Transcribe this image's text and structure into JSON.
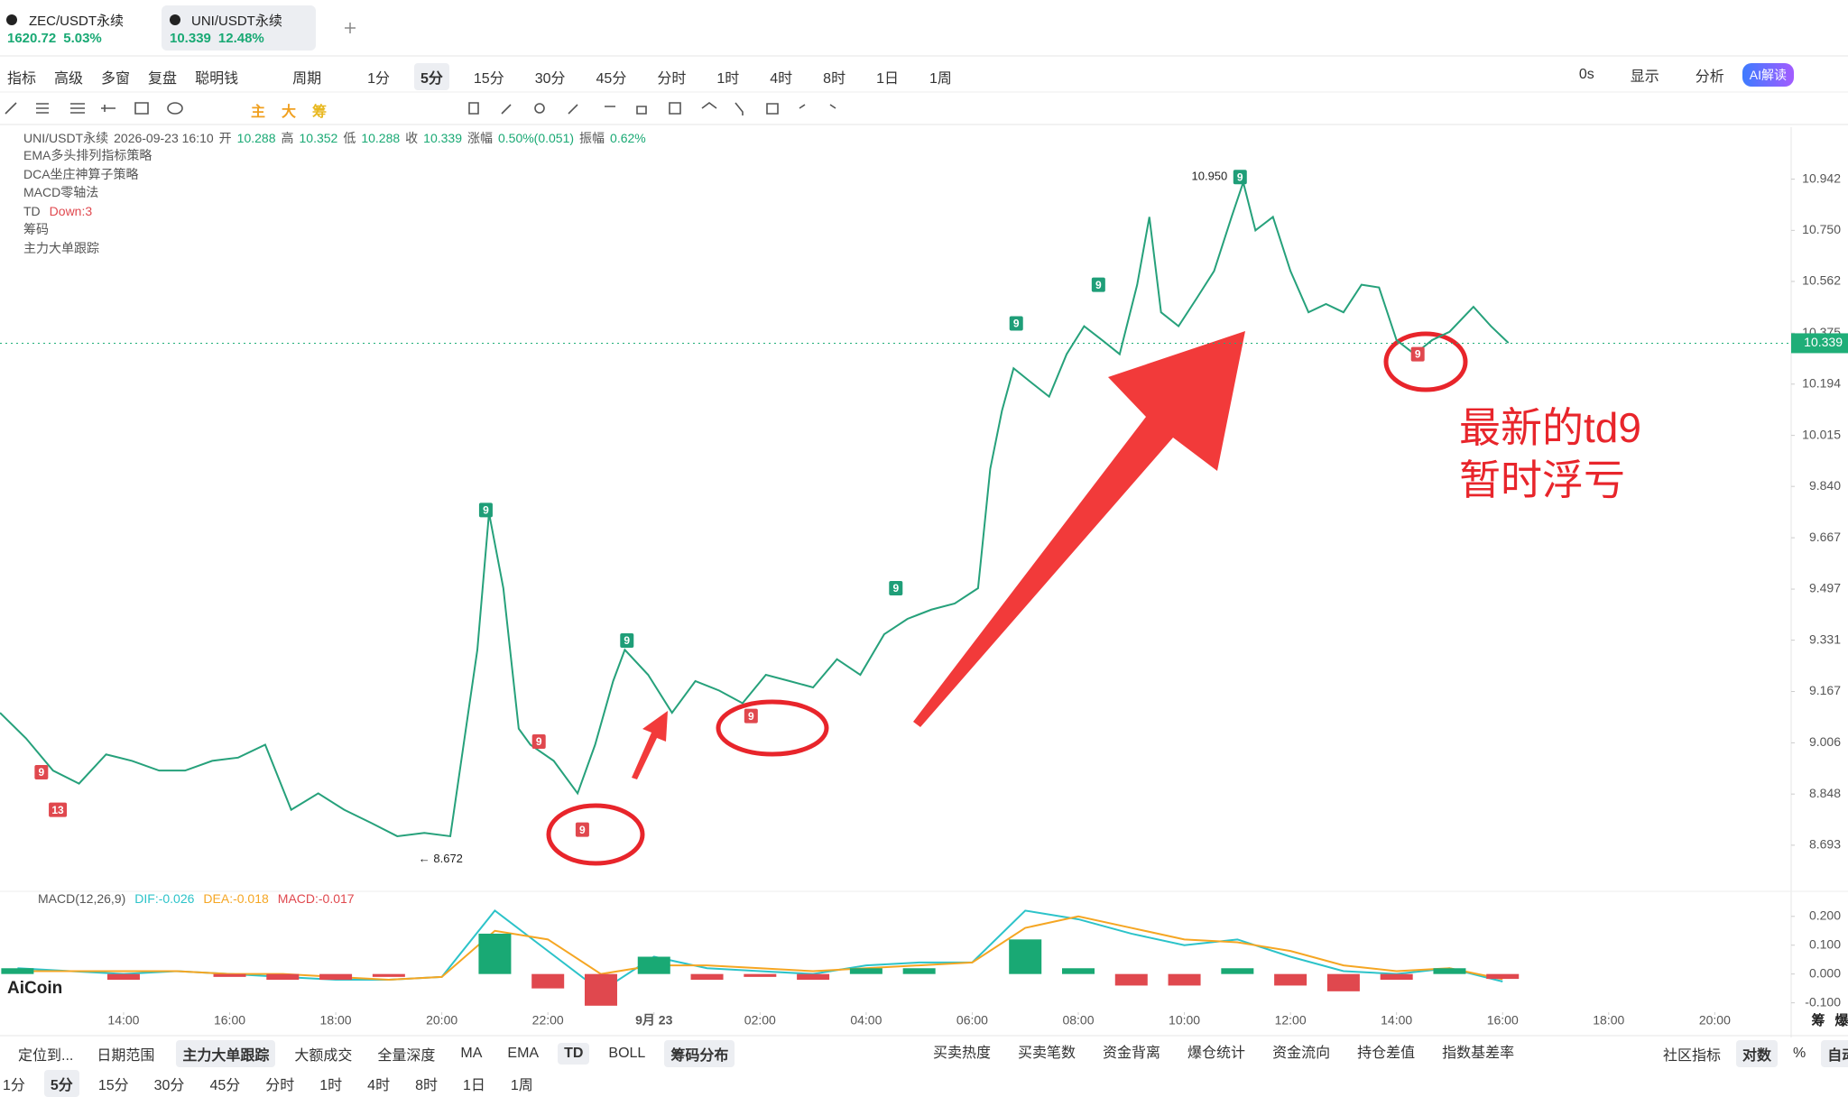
{
  "tabs": [
    {
      "name": "ZEC/USDT永续",
      "price": "1620.72",
      "change": "5.03%"
    },
    {
      "name": "UNI/USDT永续",
      "price": "10.339",
      "change": "12.48%",
      "on": true
    }
  ],
  "toolbar": {
    "left": [
      "指标",
      "高级",
      "多窗",
      "复盘",
      "聪明钱",
      "周期"
    ],
    "periods": [
      {
        "text": "1分"
      },
      {
        "text": "5分",
        "on": true
      },
      {
        "text": "15分"
      },
      {
        "text": "30分"
      },
      {
        "text": "45分"
      },
      {
        "text": "分时"
      },
      {
        "text": "1时"
      },
      {
        "text": "4时"
      },
      {
        "text": "8时"
      },
      {
        "text": "1日"
      },
      {
        "text": "1周"
      }
    ],
    "right": [
      "0s",
      "显示",
      "分析"
    ],
    "ai": "AI解读"
  },
  "draw_tools": [
    {
      "text": "主",
      "color": "#f0a020"
    },
    {
      "text": "大",
      "color": "#f0a020"
    },
    {
      "text": "筹",
      "color": "#e8b820"
    }
  ],
  "info": {
    "symbol": "UNI/USDT永续",
    "time": "2026-09-23 16:10",
    "fields": [
      [
        "开",
        "10.288"
      ],
      [
        "高",
        "10.352"
      ],
      [
        "低",
        "10.288"
      ],
      [
        "收",
        "10.339"
      ],
      [
        "涨幅",
        "0.50%(0.051)"
      ],
      [
        "振幅",
        "0.62%"
      ]
    ]
  },
  "indicators": [
    "EMA多头排列指标策略",
    "DCA坐庄神算子策略",
    "MACD零轴法",
    "TD",
    "筹码",
    "主力大单跟踪"
  ],
  "td_status": "Down:3",
  "logo": "AiCoin",
  "axis_tags": [
    "筹",
    "爆"
  ],
  "chart_data": [
    {
      "type": "line",
      "color": "#26a17b",
      "log_scale": true,
      "x": [
        11.67,
        12.16,
        12.67,
        13.16,
        13.67,
        14.16,
        14.67,
        15.16,
        15.67,
        16.16,
        16.67,
        17.16,
        17.67,
        18.16,
        18.67,
        19.16,
        19.67,
        20.16,
        20.67,
        20.89,
        21.16,
        21.45,
        21.67,
        22.11,
        22.56,
        22.89,
        23.23,
        23.45,
        23.89,
        24.34,
        24.78,
        25.23,
        25.67,
        26.11,
        26.56,
        27.0,
        27.45,
        27.89,
        28.34,
        28.78,
        29.23,
        29.67,
        30.11,
        30.34,
        30.56,
        30.78,
        31.11,
        31.45,
        31.78,
        32.11,
        32.45,
        32.78,
        33.11,
        33.34,
        33.56,
        33.89,
        34.23,
        34.56,
        34.89,
        35.11,
        35.34,
        35.67,
        36.0,
        36.34,
        36.67,
        37.0,
        37.34,
        37.67,
        38.0,
        38.34,
        38.67,
        39.0,
        39.45,
        39.78,
        40.11
      ],
      "values": [
        9.1,
        9.02,
        8.92,
        8.88,
        8.97,
        8.95,
        8.92,
        8.92,
        8.95,
        8.96,
        9.0,
        8.8,
        8.85,
        8.8,
        8.76,
        8.72,
        8.73,
        8.72,
        9.3,
        9.75,
        9.5,
        9.05,
        9.0,
        8.95,
        8.85,
        9.0,
        9.2,
        9.3,
        9.22,
        9.1,
        9.2,
        9.17,
        9.13,
        9.22,
        9.2,
        9.18,
        9.27,
        9.22,
        9.35,
        9.4,
        9.43,
        9.45,
        9.5,
        9.9,
        10.1,
        10.25,
        10.2,
        10.15,
        10.3,
        10.4,
        10.35,
        10.3,
        10.55,
        10.8,
        10.45,
        10.4,
        10.5,
        10.6,
        10.8,
        10.93,
        10.75,
        10.8,
        10.6,
        10.45,
        10.48,
        10.45,
        10.55,
        10.54,
        10.35,
        10.3,
        10.35,
        10.38,
        10.47,
        10.4,
        10.34
      ],
      "xlim": [
        11.67,
        45.44
      ],
      "xticks": [
        {
          "value": 14,
          "label": "14:00"
        },
        {
          "value": 16,
          "label": "16:00"
        },
        {
          "value": 18,
          "label": "18:00"
        },
        {
          "value": 20,
          "label": "20:00"
        },
        {
          "value": 22,
          "label": "22:00"
        },
        {
          "value": 24,
          "label": "9月 23"
        },
        {
          "value": 26,
          "label": "02:00"
        },
        {
          "value": 28,
          "label": "04:00"
        },
        {
          "value": 30,
          "label": "06:00"
        },
        {
          "value": 32,
          "label": "08:00"
        },
        {
          "value": 34,
          "label": "10:00"
        },
        {
          "value": 36,
          "label": "12:00"
        },
        {
          "value": 38,
          "label": "14:00"
        },
        {
          "value": 40,
          "label": "16:00"
        },
        {
          "value": 42,
          "label": "18:00"
        },
        {
          "value": 44,
          "label": "20:00"
        }
      ],
      "ylim": [
        8.577,
        11.14
      ],
      "yticks": [
        10.942,
        {
          "value": 10.75,
          "label": "10.750"
        },
        10.562,
        10.375,
        10.194,
        10.015,
        {
          "value": 9.84,
          "label": "9.840"
        },
        9.667,
        9.497,
        9.331,
        9.167,
        9.006,
        8.848,
        8.693
      ],
      "last_price": {
        "value": 10.339,
        "color": "#1fae78"
      },
      "high": {
        "x": 35.05,
        "value": 10.95,
        "label": "10.950"
      },
      "low": {
        "x": 19.56,
        "value": 8.672,
        "label": "← 8.672"
      },
      "td_markers": [
        {
          "x": 20.83,
          "y": 9.76,
          "label": "9",
          "color": "#1f9e78"
        },
        {
          "x": 23.49,
          "y": 9.33,
          "label": "9",
          "color": "#1f9e78"
        },
        {
          "x": 28.56,
          "y": 9.5,
          "label": "9",
          "color": "#1f9e78"
        },
        {
          "x": 30.83,
          "y": 10.41,
          "label": "9",
          "color": "#1f9e78"
        },
        {
          "x": 32.38,
          "y": 10.55,
          "label": "9",
          "color": "#1f9e78"
        },
        {
          "x": 35.05,
          "y": 10.95,
          "label": "9",
          "color": "#1f9e78"
        },
        {
          "x": 12.45,
          "y": 8.915,
          "label": "9",
          "color": "#e0484e"
        },
        {
          "x": 12.76,
          "y": 8.8,
          "label": "13",
          "color": "#e0484e"
        },
        {
          "x": 21.83,
          "y": 9.01,
          "label": "9",
          "color": "#e0484e"
        },
        {
          "x": 22.65,
          "y": 8.74,
          "label": "9",
          "color": "#e0484e"
        },
        {
          "x": 25.83,
          "y": 9.09,
          "label": "9",
          "color": "#e0484e"
        },
        {
          "x": 38.4,
          "y": 10.3,
          "label": "9",
          "color": "#e0484e"
        }
      ],
      "annotations": [
        "最新的td9",
        "暂时浮亏"
      ]
    },
    {
      "type": "macd",
      "title": "MACD(12,26,9)",
      "up_color": "#19a974",
      "down_color": "#e0484e",
      "x": [
        12,
        13,
        14,
        15,
        16,
        17,
        18,
        19,
        20,
        21,
        22,
        23,
        24,
        25,
        26,
        27,
        28,
        29,
        30,
        31,
        32,
        33,
        34,
        35,
        36,
        37,
        38,
        39,
        40
      ],
      "xlim": [
        11.67,
        45.44
      ],
      "ylim": [
        -0.12,
        0.24
      ],
      "yticks": [
        {
          "value": 0.2,
          "label": "0.200"
        },
        {
          "value": 0.1,
          "label": "0.100"
        },
        {
          "value": 0,
          "label": "0.000"
        },
        {
          "value": -0.1,
          "label": "-0.100"
        }
      ],
      "series": [
        {
          "name": "DIF",
          "label": "DIF:-0.026",
          "color": "#2cc3c9",
          "values": [
            0.02,
            0.01,
            0.0,
            0.01,
            0.0,
            -0.01,
            -0.02,
            -0.02,
            -0.01,
            0.22,
            0.08,
            -0.06,
            0.06,
            0.02,
            0.01,
            0.0,
            0.03,
            0.04,
            0.04,
            0.22,
            0.19,
            0.14,
            0.1,
            0.12,
            0.06,
            0.01,
            0.0,
            0.02,
            -0.026
          ]
        },
        {
          "name": "DEA",
          "label": "DEA:-0.018",
          "color": "#f5a623",
          "values": [
            0.01,
            0.01,
            0.01,
            0.01,
            0.0,
            0.0,
            -0.01,
            -0.02,
            -0.01,
            0.15,
            0.12,
            0.0,
            0.03,
            0.03,
            0.02,
            0.01,
            0.02,
            0.03,
            0.04,
            0.16,
            0.2,
            0.16,
            0.12,
            0.11,
            0.08,
            0.03,
            0.01,
            0.02,
            -0.018
          ]
        },
        {
          "name": "MACD",
          "label": "MACD:-0.017",
          "color": "#e0484e",
          "values": [
            0.02,
            0.0,
            -0.02,
            0.0,
            -0.01,
            -0.02,
            -0.02,
            -0.01,
            0.0,
            0.14,
            -0.05,
            -0.11,
            0.06,
            -0.02,
            -0.01,
            -0.02,
            0.02,
            0.02,
            0.0,
            0.12,
            0.02,
            -0.04,
            -0.04,
            0.02,
            -0.04,
            -0.06,
            -0.02,
            0.02,
            -0.017
          ]
        }
      ]
    }
  ],
  "bottom": {
    "left": [
      "定位到...",
      "日期范围"
    ],
    "tabs": [
      {
        "text": "主力大单跟踪",
        "on": true
      },
      {
        "text": "大额成交"
      },
      {
        "text": "全量深度"
      },
      {
        "text": "MA"
      },
      {
        "text": "EMA"
      },
      {
        "text": "TD",
        "on": true
      },
      {
        "text": "BOLL"
      },
      {
        "text": "筹码分布",
        "on": true
      }
    ],
    "data_tabs": [
      "买卖热度",
      "买卖笔数",
      "资金背离",
      "爆仓统计",
      "资金流向",
      "持仓差值",
      "指数基差率"
    ],
    "right": [
      {
        "text": "社区指标"
      },
      {
        "text": "对数",
        "on": true
      },
      {
        "text": "%"
      },
      {
        "text": "自动",
        "on": true
      }
    ],
    "periods": [
      {
        "text": "1分"
      },
      {
        "text": "5分",
        "on": true
      },
      {
        "text": "15分"
      },
      {
        "text": "30分"
      },
      {
        "text": "45分"
      },
      {
        "text": "分时"
      },
      {
        "text": "1时"
      },
      {
        "text": "4时"
      },
      {
        "text": "8时"
      },
      {
        "text": "1日"
      },
      {
        "text": "1周"
      }
    ]
  }
}
